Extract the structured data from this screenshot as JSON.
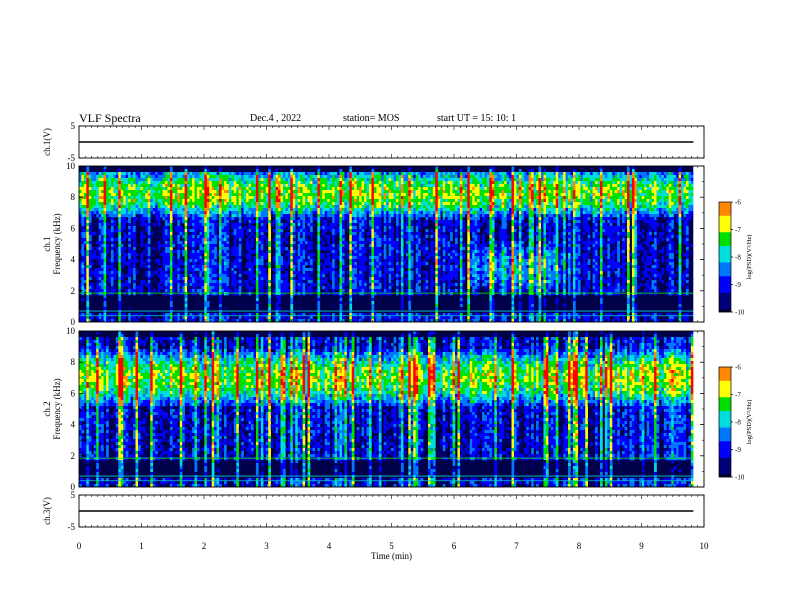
{
  "header": {
    "title": "VLF Spectra",
    "date": "Dec.4 , 2022",
    "station": "station= MOS",
    "start_ut": "start UT =  15: 10: 1"
  },
  "colorbar_ticks": [
    "-6",
    "-7",
    "-8",
    "-9",
    "-10"
  ],
  "colorbar_label": "log(PSD)(V²/Hz)",
  "palette": [
    "#000030",
    "#00007a",
    "#0000ff",
    "#0077ff",
    "#00dddd",
    "#00e000",
    "#ffff00",
    "#ff8800",
    "#ff0000",
    "#ffffff"
  ],
  "chart_data": [
    {
      "type": "line",
      "panel": "ch1-voltage",
      "ylabel": "ch.1(V)",
      "ylim": [
        -5,
        5
      ],
      "yticks": [
        "5",
        "-5"
      ],
      "xlim": [
        0,
        10
      ],
      "series": [
        {
          "x": [
            0,
            9.83
          ],
          "y": [
            0,
            0
          ]
        }
      ]
    },
    {
      "type": "heatmap",
      "panel": "ch1-spectrogram",
      "ylabel": "ch.1 Frequency (kHz)",
      "ylim": [
        0,
        10
      ],
      "yticks": [
        "0",
        "2",
        "4",
        "6",
        "8",
        "10"
      ],
      "xlim": [
        0,
        10
      ],
      "data_end_min": 9.83,
      "color_scale": [
        -10,
        -6
      ],
      "intense_band_khz": [
        7.5,
        9
      ],
      "low_band_khz": [
        0,
        1.8
      ],
      "diffuse_cloud": {
        "center_min": 7,
        "center_khz": 3.5
      }
    },
    {
      "type": "heatmap",
      "panel": "ch2-spectrogram",
      "ylabel": "ch.2 Frequency (kHz)",
      "ylim": [
        0,
        10
      ],
      "yticks": [
        "0",
        "2",
        "4",
        "6",
        "8",
        "10"
      ],
      "xlim": [
        0,
        10
      ],
      "data_end_min": 9.83,
      "color_scale": [
        -10,
        -6
      ],
      "intense_band_khz": [
        6,
        8
      ],
      "low_band_khz": [
        0,
        1.8
      ]
    },
    {
      "type": "line",
      "panel": "ch3-voltage",
      "ylabel": "ch.3(V)",
      "ylim": [
        -5,
        5
      ],
      "yticks": [
        "5",
        "-5"
      ],
      "xlim": [
        0,
        10
      ],
      "xticks": [
        "0",
        "1",
        "2",
        "3",
        "4",
        "5",
        "6",
        "7",
        "8",
        "9",
        "10"
      ],
      "xlabel": "Time (min)",
      "series": [
        {
          "x": [
            0,
            9.83
          ],
          "y": [
            0,
            0
          ]
        }
      ]
    }
  ]
}
